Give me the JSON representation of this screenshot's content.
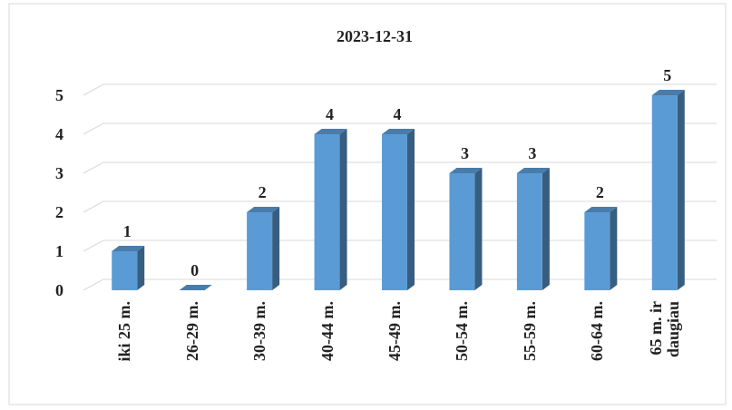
{
  "chart_data": {
    "type": "bar",
    "title": "2023-12-31",
    "categories": [
      "iki 25 m.",
      "26-29 m.",
      "30-39 m.",
      "40-44 m.",
      "45-49 m.",
      "50-54 m.",
      "55-59 m.",
      "60-64 m.",
      "65 m. ir daugiau"
    ],
    "values": [
      1,
      0,
      2,
      4,
      4,
      3,
      3,
      2,
      5
    ],
    "color": "#5b9bd5",
    "ylim": [
      0,
      5
    ],
    "yticks": [
      0,
      1,
      2,
      3,
      4,
      5
    ],
    "grid": true
  }
}
